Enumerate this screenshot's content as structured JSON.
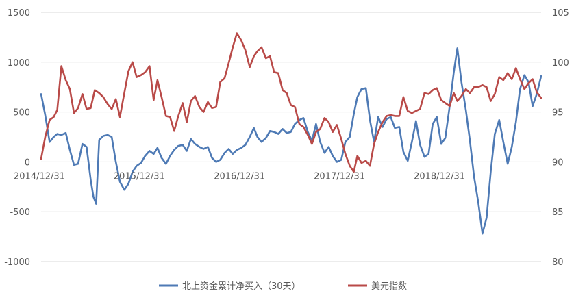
{
  "chart_data": {
    "type": "line",
    "title": "",
    "x_tick_labels": [
      "2014/12/31",
      "2015/12/31",
      "2016/12/31",
      "2017/12/31",
      "2018/12/31"
    ],
    "y_left": {
      "ticks": [
        -1000,
        -500,
        0,
        500,
        1000,
        1500
      ],
      "ylim": [
        -1000,
        1500
      ]
    },
    "y_right": {
      "ticks": [
        80,
        85,
        90,
        95,
        100,
        105
      ],
      "ylim": [
        80,
        105
      ]
    },
    "grid": "horizontal",
    "legend_position": "bottom",
    "series": [
      {
        "name": "北上资金累计净买入（30天）",
        "axis": "left",
        "color": "#4e7ab5",
        "points": [
          [
            "2014-12-31",
            680
          ],
          [
            "2015-01-15",
            470
          ],
          [
            "2015-01-31",
            200
          ],
          [
            "2015-02-15",
            250
          ],
          [
            "2015-02-28",
            280
          ],
          [
            "2015-03-15",
            270
          ],
          [
            "2015-03-31",
            290
          ],
          [
            "2015-04-15",
            120
          ],
          [
            "2015-04-30",
            -30
          ],
          [
            "2015-05-15",
            -20
          ],
          [
            "2015-05-31",
            180
          ],
          [
            "2015-06-15",
            150
          ],
          [
            "2015-06-30",
            -180
          ],
          [
            "2015-07-10",
            -350
          ],
          [
            "2015-07-20",
            -420
          ],
          [
            "2015-07-31",
            220
          ],
          [
            "2015-08-15",
            260
          ],
          [
            "2015-08-31",
            270
          ],
          [
            "2015-09-15",
            250
          ],
          [
            "2015-09-30",
            0
          ],
          [
            "2015-10-15",
            -200
          ],
          [
            "2015-10-31",
            -280
          ],
          [
            "2015-11-15",
            -220
          ],
          [
            "2015-11-30",
            -100
          ],
          [
            "2015-12-15",
            -40
          ],
          [
            "2015-12-31",
            -10
          ],
          [
            "2016-01-15",
            60
          ],
          [
            "2016-01-31",
            110
          ],
          [
            "2016-02-15",
            80
          ],
          [
            "2016-02-29",
            140
          ],
          [
            "2016-03-15",
            40
          ],
          [
            "2016-03-31",
            -20
          ],
          [
            "2016-04-15",
            60
          ],
          [
            "2016-04-30",
            120
          ],
          [
            "2016-05-15",
            160
          ],
          [
            "2016-05-31",
            170
          ],
          [
            "2016-06-15",
            110
          ],
          [
            "2016-06-30",
            230
          ],
          [
            "2016-07-15",
            180
          ],
          [
            "2016-07-31",
            150
          ],
          [
            "2016-08-15",
            130
          ],
          [
            "2016-08-31",
            150
          ],
          [
            "2016-09-15",
            40
          ],
          [
            "2016-09-30",
            0
          ],
          [
            "2016-10-15",
            20
          ],
          [
            "2016-10-31",
            90
          ],
          [
            "2016-11-15",
            130
          ],
          [
            "2016-11-30",
            80
          ],
          [
            "2016-12-15",
            120
          ],
          [
            "2016-12-31",
            140
          ],
          [
            "2017-01-15",
            170
          ],
          [
            "2017-01-31",
            250
          ],
          [
            "2017-02-15",
            340
          ],
          [
            "2017-02-28",
            250
          ],
          [
            "2017-03-15",
            200
          ],
          [
            "2017-03-31",
            240
          ],
          [
            "2017-04-15",
            310
          ],
          [
            "2017-04-30",
            300
          ],
          [
            "2017-05-15",
            280
          ],
          [
            "2017-05-31",
            330
          ],
          [
            "2017-06-15",
            290
          ],
          [
            "2017-06-30",
            300
          ],
          [
            "2017-07-15",
            380
          ],
          [
            "2017-07-31",
            420
          ],
          [
            "2017-08-15",
            440
          ],
          [
            "2017-08-31",
            300
          ],
          [
            "2017-09-15",
            210
          ],
          [
            "2017-09-30",
            380
          ],
          [
            "2017-10-15",
            200
          ],
          [
            "2017-10-31",
            90
          ],
          [
            "2017-11-15",
            150
          ],
          [
            "2017-11-30",
            60
          ],
          [
            "2017-12-15",
            0
          ],
          [
            "2017-12-31",
            20
          ],
          [
            "2018-01-15",
            200
          ],
          [
            "2018-01-31",
            250
          ],
          [
            "2018-02-15",
            480
          ],
          [
            "2018-02-28",
            650
          ],
          [
            "2018-03-15",
            730
          ],
          [
            "2018-03-31",
            740
          ],
          [
            "2018-04-15",
            420
          ],
          [
            "2018-04-30",
            200
          ],
          [
            "2018-05-15",
            450
          ],
          [
            "2018-05-31",
            350
          ],
          [
            "2018-06-15",
            430
          ],
          [
            "2018-06-30",
            450
          ],
          [
            "2018-07-15",
            340
          ],
          [
            "2018-07-31",
            350
          ],
          [
            "2018-08-15",
            100
          ],
          [
            "2018-08-31",
            10
          ],
          [
            "2018-09-15",
            200
          ],
          [
            "2018-09-30",
            410
          ],
          [
            "2018-10-15",
            170
          ],
          [
            "2018-10-31",
            50
          ],
          [
            "2018-11-15",
            80
          ],
          [
            "2018-11-30",
            380
          ],
          [
            "2018-12-15",
            450
          ],
          [
            "2018-12-31",
            180
          ],
          [
            "2019-01-15",
            240
          ],
          [
            "2019-01-31",
            560
          ],
          [
            "2019-02-15",
            900
          ],
          [
            "2019-02-28",
            1140
          ],
          [
            "2019-03-15",
            800
          ],
          [
            "2019-03-31",
            520
          ],
          [
            "2019-04-15",
            210
          ],
          [
            "2019-04-30",
            -150
          ],
          [
            "2019-05-15",
            -400
          ],
          [
            "2019-05-31",
            -720
          ],
          [
            "2019-06-15",
            -560
          ],
          [
            "2019-06-30",
            -100
          ],
          [
            "2019-07-15",
            280
          ],
          [
            "2019-07-31",
            420
          ],
          [
            "2019-08-15",
            200
          ],
          [
            "2019-08-31",
            -20
          ],
          [
            "2019-09-15",
            150
          ],
          [
            "2019-09-30",
            400
          ],
          [
            "2019-10-15",
            730
          ],
          [
            "2019-10-31",
            870
          ],
          [
            "2019-11-15",
            800
          ],
          [
            "2019-11-30",
            560
          ],
          [
            "2019-12-15",
            680
          ],
          [
            "2019-12-31",
            860
          ]
        ]
      },
      {
        "name": "美元指数",
        "axis": "right",
        "color": "#b94a48",
        "points": [
          [
            "2014-12-31",
            90.3
          ],
          [
            "2015-01-15",
            92.5
          ],
          [
            "2015-01-31",
            94.2
          ],
          [
            "2015-02-15",
            94.5
          ],
          [
            "2015-02-28",
            95.2
          ],
          [
            "2015-03-15",
            99.6
          ],
          [
            "2015-03-31",
            98.2
          ],
          [
            "2015-04-15",
            97.3
          ],
          [
            "2015-04-30",
            94.9
          ],
          [
            "2015-05-15",
            95.4
          ],
          [
            "2015-05-31",
            96.8
          ],
          [
            "2015-06-15",
            95.3
          ],
          [
            "2015-06-30",
            95.4
          ],
          [
            "2015-07-15",
            97.2
          ],
          [
            "2015-07-31",
            96.9
          ],
          [
            "2015-08-15",
            96.5
          ],
          [
            "2015-08-31",
            95.8
          ],
          [
            "2015-09-15",
            95.3
          ],
          [
            "2015-09-30",
            96.3
          ],
          [
            "2015-10-15",
            94.5
          ],
          [
            "2015-10-31",
            96.9
          ],
          [
            "2015-11-15",
            99.1
          ],
          [
            "2015-11-30",
            100.0
          ],
          [
            "2015-12-15",
            98.5
          ],
          [
            "2015-12-31",
            98.7
          ],
          [
            "2016-01-15",
            99.0
          ],
          [
            "2016-01-31",
            99.6
          ],
          [
            "2016-02-15",
            96.2
          ],
          [
            "2016-02-29",
            98.2
          ],
          [
            "2016-03-15",
            96.5
          ],
          [
            "2016-03-31",
            94.6
          ],
          [
            "2016-04-15",
            94.5
          ],
          [
            "2016-04-30",
            93.1
          ],
          [
            "2016-05-15",
            94.6
          ],
          [
            "2016-05-31",
            95.9
          ],
          [
            "2016-06-15",
            94.0
          ],
          [
            "2016-06-30",
            96.1
          ],
          [
            "2016-07-15",
            96.6
          ],
          [
            "2016-07-31",
            95.5
          ],
          [
            "2016-08-15",
            95.0
          ],
          [
            "2016-08-31",
            96.0
          ],
          [
            "2016-09-15",
            95.4
          ],
          [
            "2016-09-30",
            95.5
          ],
          [
            "2016-10-15",
            98.0
          ],
          [
            "2016-10-31",
            98.4
          ],
          [
            "2016-11-15",
            99.9
          ],
          [
            "2016-11-30",
            101.5
          ],
          [
            "2016-12-15",
            102.9
          ],
          [
            "2016-12-31",
            102.2
          ],
          [
            "2017-01-15",
            101.2
          ],
          [
            "2017-01-31",
            99.5
          ],
          [
            "2017-02-15",
            100.6
          ],
          [
            "2017-02-28",
            101.1
          ],
          [
            "2017-03-15",
            101.5
          ],
          [
            "2017-03-31",
            100.4
          ],
          [
            "2017-04-15",
            100.6
          ],
          [
            "2017-04-30",
            99.0
          ],
          [
            "2017-05-15",
            98.9
          ],
          [
            "2017-05-31",
            97.2
          ],
          [
            "2017-06-15",
            96.9
          ],
          [
            "2017-06-30",
            95.7
          ],
          [
            "2017-07-15",
            95.5
          ],
          [
            "2017-07-31",
            93.8
          ],
          [
            "2017-08-15",
            93.5
          ],
          [
            "2017-08-31",
            92.7
          ],
          [
            "2017-09-15",
            91.8
          ],
          [
            "2017-09-30",
            93.0
          ],
          [
            "2017-10-15",
            93.3
          ],
          [
            "2017-10-31",
            94.4
          ],
          [
            "2017-11-15",
            94.0
          ],
          [
            "2017-11-30",
            93.0
          ],
          [
            "2017-12-15",
            93.7
          ],
          [
            "2017-12-31",
            92.3
          ],
          [
            "2018-01-15",
            90.8
          ],
          [
            "2018-01-31",
            89.6
          ],
          [
            "2018-02-15",
            89.0
          ],
          [
            "2018-02-28",
            90.6
          ],
          [
            "2018-03-15",
            89.9
          ],
          [
            "2018-03-31",
            90.1
          ],
          [
            "2018-04-15",
            89.6
          ],
          [
            "2018-04-30",
            91.8
          ],
          [
            "2018-05-15",
            93.0
          ],
          [
            "2018-05-31",
            94.0
          ],
          [
            "2018-06-15",
            94.6
          ],
          [
            "2018-06-30",
            94.7
          ],
          [
            "2018-07-15",
            94.6
          ],
          [
            "2018-07-31",
            94.6
          ],
          [
            "2018-08-15",
            96.5
          ],
          [
            "2018-08-31",
            95.1
          ],
          [
            "2018-09-15",
            94.9
          ],
          [
            "2018-09-30",
            95.1
          ],
          [
            "2018-10-15",
            95.3
          ],
          [
            "2018-10-31",
            96.9
          ],
          [
            "2018-11-15",
            96.8
          ],
          [
            "2018-11-30",
            97.2
          ],
          [
            "2018-12-15",
            97.4
          ],
          [
            "2018-12-31",
            96.2
          ],
          [
            "2019-01-15",
            95.9
          ],
          [
            "2019-01-31",
            95.6
          ],
          [
            "2019-02-15",
            96.9
          ],
          [
            "2019-02-28",
            96.1
          ],
          [
            "2019-03-15",
            96.6
          ],
          [
            "2019-03-31",
            97.3
          ],
          [
            "2019-04-15",
            96.9
          ],
          [
            "2019-04-30",
            97.5
          ],
          [
            "2019-05-15",
            97.5
          ],
          [
            "2019-05-31",
            97.7
          ],
          [
            "2019-06-15",
            97.5
          ],
          [
            "2019-06-30",
            96.1
          ],
          [
            "2019-07-15",
            96.8
          ],
          [
            "2019-07-31",
            98.5
          ],
          [
            "2019-08-15",
            98.2
          ],
          [
            "2019-08-31",
            98.9
          ],
          [
            "2019-09-15",
            98.3
          ],
          [
            "2019-09-30",
            99.4
          ],
          [
            "2019-10-15",
            98.3
          ],
          [
            "2019-10-31",
            97.3
          ],
          [
            "2019-11-15",
            97.9
          ],
          [
            "2019-11-30",
            98.3
          ],
          [
            "2019-12-15",
            97.0
          ],
          [
            "2019-12-31",
            96.4
          ]
        ]
      }
    ]
  }
}
